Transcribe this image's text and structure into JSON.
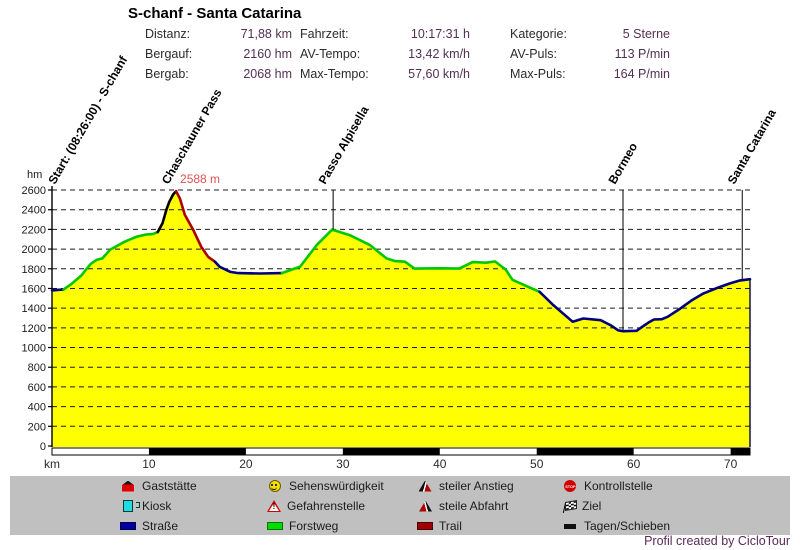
{
  "header": {
    "title": "S-chanf - Santa Catarina",
    "stats": {
      "col1": [
        {
          "label": "Distanz:",
          "value": "71,88 km"
        },
        {
          "label": "Bergauf:",
          "value": "2160 hm"
        },
        {
          "label": "Bergab:",
          "value": "2068 hm"
        }
      ],
      "col2": [
        {
          "label": "Fahrzeit:",
          "value": "10:17:31 h"
        },
        {
          "label": "AV-Tempo:",
          "value": "13,42 km/h"
        },
        {
          "label": "Max-Tempo:",
          "value": "57,60 km/h"
        }
      ],
      "col3": [
        {
          "label": "Kategorie:",
          "value": "5 Sterne"
        },
        {
          "label": "AV-Puls:",
          "value": "113 P/min"
        },
        {
          "label": "Max-Puls:",
          "value": "164 P/min"
        }
      ]
    }
  },
  "legend": {
    "stop_icon_text": "STOP",
    "items": [
      {
        "icon": "house-icon",
        "label": "Gaststätte"
      },
      {
        "icon": "kiosk-icon",
        "label": "Kiosk"
      },
      {
        "icon": "road-swatch",
        "label": "Straße"
      },
      {
        "icon": "smiley-icon",
        "label": "Sehenswürdigkeit"
      },
      {
        "icon": "danger-icon",
        "label": "Gefahrenstelle"
      },
      {
        "icon": "forest-road-swatch",
        "label": "Forstweg"
      },
      {
        "icon": "steep-ascent-icon",
        "label": "steiler Anstieg"
      },
      {
        "icon": "steep-descent-icon",
        "label": "steile Abfahrt"
      },
      {
        "icon": "trail-swatch",
        "label": "Trail"
      },
      {
        "icon": "stop-icon",
        "label": "Kontrollstelle"
      },
      {
        "icon": "finish-flag-icon",
        "label": "Ziel"
      },
      {
        "icon": "push-swatch",
        "label": "Tagen/Schieben"
      }
    ]
  },
  "footer": {
    "credit": "Profil created by CicloTour"
  },
  "chart_data": {
    "type": "area",
    "title": "S-chanf - Santa Catarina",
    "xlabel": "km",
    "ylabel": "hm",
    "x_axis": {
      "min": 0,
      "max": 72,
      "ticks": [
        10,
        20,
        30,
        40,
        50,
        60,
        70
      ],
      "bar_blocks_start": [
        10,
        30,
        50,
        70
      ]
    },
    "y_axis": {
      "min": 0,
      "max": 2600,
      "tick_step": 200
    },
    "grid": true,
    "fill_color": "#ffff00",
    "segments": [
      {
        "surface": "road",
        "color": "#000080",
        "points": [
          [
            0,
            1580
          ],
          [
            0.6,
            1585
          ],
          [
            1.2,
            1590
          ]
        ]
      },
      {
        "surface": "forest-road",
        "color": "#00c800",
        "points": [
          [
            1.2,
            1590
          ],
          [
            2,
            1645
          ],
          [
            3,
            1730
          ],
          [
            4,
            1850
          ],
          [
            4.6,
            1890
          ],
          [
            5.2,
            1905
          ],
          [
            6,
            1995
          ],
          [
            7.5,
            2075
          ],
          [
            8.7,
            2125
          ],
          [
            9.7,
            2148
          ],
          [
            10.4,
            2152
          ],
          [
            10.9,
            2172
          ]
        ]
      },
      {
        "surface": "push",
        "color": "#000000",
        "points": [
          [
            10.9,
            2172
          ],
          [
            11.4,
            2262
          ],
          [
            11.8,
            2400
          ],
          [
            12.1,
            2480
          ],
          [
            12.5,
            2555
          ],
          [
            12.8,
            2588
          ]
        ]
      },
      {
        "surface": "trail",
        "color": "#aa0000",
        "points": [
          [
            12.8,
            2588
          ],
          [
            13.2,
            2512
          ],
          [
            13.7,
            2348
          ],
          [
            14.6,
            2190
          ],
          [
            15.4,
            2022
          ],
          [
            16.1,
            1922
          ],
          [
            16.8,
            1872
          ]
        ]
      },
      {
        "surface": "road",
        "color": "#000080",
        "points": [
          [
            16.8,
            1872
          ],
          [
            17.3,
            1820
          ],
          [
            18.4,
            1768
          ],
          [
            19.2,
            1756
          ],
          [
            21.5,
            1752
          ],
          [
            23.7,
            1756
          ]
        ]
      },
      {
        "surface": "forest-road",
        "color": "#00c800",
        "points": [
          [
            23.7,
            1756
          ],
          [
            25.6,
            1822
          ],
          [
            27.3,
            2040
          ],
          [
            28.9,
            2198
          ],
          [
            30.7,
            2142
          ],
          [
            32.8,
            2040
          ],
          [
            34.5,
            1905
          ],
          [
            35.4,
            1878
          ],
          [
            36.4,
            1872
          ],
          [
            37.4,
            1802
          ],
          [
            40,
            1805
          ],
          [
            42,
            1802
          ],
          [
            43.4,
            1868
          ],
          [
            44.8,
            1862
          ],
          [
            45.7,
            1875
          ],
          [
            46.8,
            1792
          ],
          [
            47.5,
            1688
          ],
          [
            49,
            1622
          ],
          [
            50.3,
            1566
          ]
        ]
      },
      {
        "surface": "road",
        "color": "#000080",
        "points": [
          [
            50.3,
            1566
          ],
          [
            51.7,
            1432
          ],
          [
            53.7,
            1262
          ],
          [
            54.8,
            1295
          ],
          [
            56.6,
            1278
          ],
          [
            57.6,
            1228
          ],
          [
            58.4,
            1175
          ],
          [
            58.9,
            1166
          ],
          [
            60.3,
            1170
          ],
          [
            60.9,
            1212
          ],
          [
            61.6,
            1258
          ],
          [
            62.1,
            1285
          ],
          [
            62.9,
            1288
          ],
          [
            63.5,
            1312
          ],
          [
            64.8,
            1395
          ],
          [
            66,
            1480
          ],
          [
            67.2,
            1550
          ],
          [
            68.6,
            1605
          ],
          [
            69.9,
            1650
          ],
          [
            70.9,
            1680
          ],
          [
            72,
            1694
          ]
        ]
      }
    ],
    "annotations": [
      {
        "label": "Start: (08:26:00) - S-chanf",
        "km": 0.3,
        "hm": 1580,
        "line": false
      },
      {
        "label": "Chaschauner Pass",
        "km": 12.0,
        "hm": 2588,
        "line": false
      },
      {
        "label": "Passo Alpisella",
        "km": 29.0,
        "hm": 2198,
        "line": true
      },
      {
        "label": "Bormeo",
        "km": 58.9,
        "hm": 1166,
        "line": true
      },
      {
        "label": "Santa Catarina",
        "km": 71.2,
        "hm": 1688,
        "line": true
      }
    ],
    "peak_label": {
      "text": "2588 m",
      "km": 13.0
    }
  }
}
